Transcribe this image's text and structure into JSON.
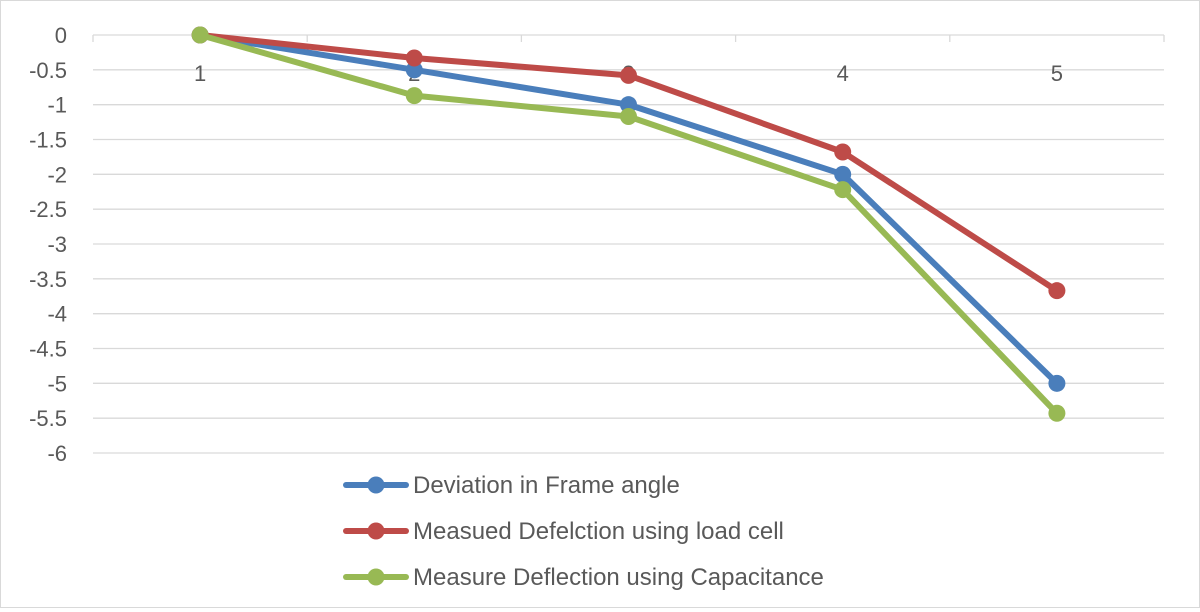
{
  "chart_data": {
    "type": "line",
    "title": "",
    "xlabel": "",
    "ylabel": "",
    "categories": [
      "1",
      "2",
      "3",
      "4",
      "5"
    ],
    "y_ticks": [
      "0",
      "-0.5",
      "-1",
      "-1.5",
      "-2",
      "-2.5",
      "-3",
      "-3.5",
      "-4",
      "-4.5",
      "-5",
      "-5.5",
      "-6"
    ],
    "ylim": [
      -6,
      0
    ],
    "grid": true,
    "legend_position": "bottom",
    "series": [
      {
        "name": "Deviation in Frame angle",
        "color": "#4a7ebb",
        "values": [
          0,
          -0.5,
          -1.0,
          -2.0,
          -5.0
        ]
      },
      {
        "name": "Measued Defelction using load cell",
        "color": "#be4b48",
        "values": [
          0,
          -0.33,
          -0.58,
          -1.68,
          -3.67
        ]
      },
      {
        "name": "Measure Deflection using Capacitance",
        "color": "#98b954",
        "values": [
          0,
          -0.87,
          -1.17,
          -2.22,
          -5.43
        ]
      }
    ]
  }
}
